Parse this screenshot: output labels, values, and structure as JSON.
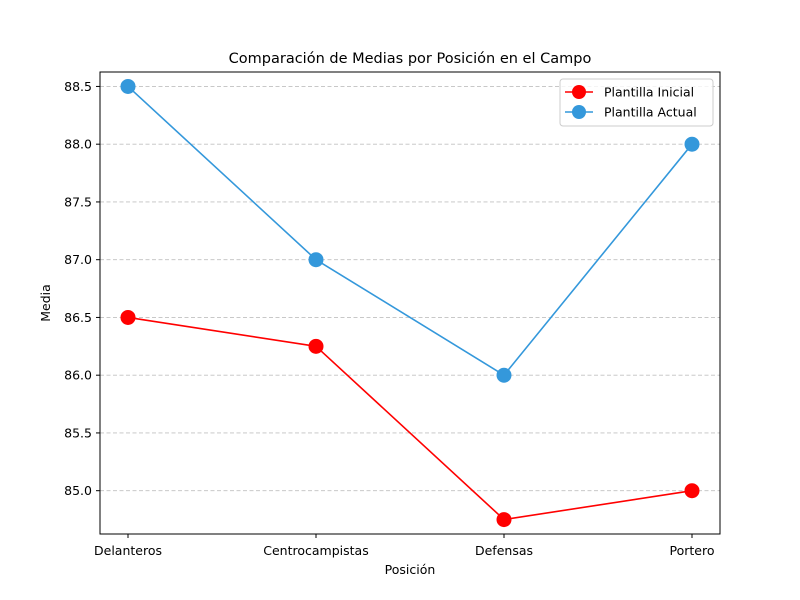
{
  "chart_data": {
    "type": "line",
    "title": "Comparación de Medias por Posición en el Campo",
    "xlabel": "Posición",
    "ylabel": "Media",
    "categories": [
      "Delanteros",
      "Centrocampistas",
      "Defensas",
      "Portero"
    ],
    "series": [
      {
        "name": "Plantilla Inicial",
        "values": [
          86.5,
          86.25,
          84.75,
          85.0
        ],
        "color": "#ff0000",
        "marker": "circle"
      },
      {
        "name": "Plantilla Actual",
        "values": [
          88.5,
          87.0,
          86.0,
          88.0
        ],
        "color": "#3498db",
        "marker": "circle"
      }
    ],
    "ylim": [
      84.625,
      88.625
    ],
    "yticks": [
      "85.0",
      "85.5",
      "86.0",
      "86.5",
      "87.0",
      "87.5",
      "88.0",
      "88.5"
    ],
    "grid": {
      "y": true,
      "style": "dashed"
    },
    "legend_position": "top-right"
  }
}
